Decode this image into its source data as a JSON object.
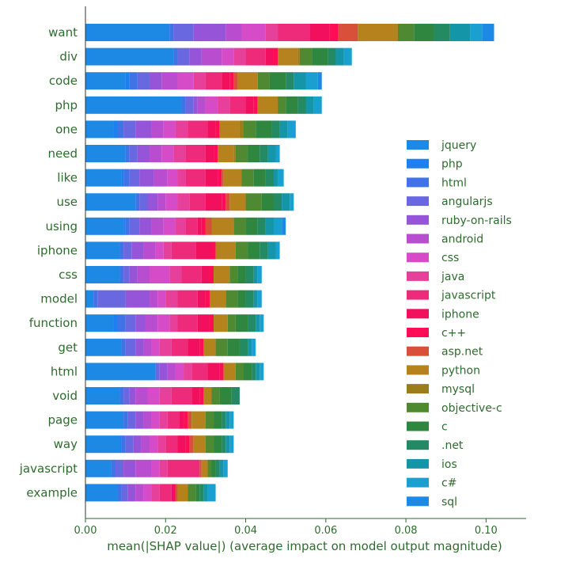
{
  "chart_data": {
    "type": "bar",
    "orientation": "horizontal",
    "stacked": true,
    "xlabel": "mean(|SHAP value|) (average impact on model output magnitude)",
    "xlim": [
      0,
      0.11
    ],
    "xticks": [
      0.0,
      0.02,
      0.04,
      0.06,
      0.08,
      0.1
    ],
    "xtick_labels": [
      "0.00",
      "0.02",
      "0.04",
      "0.06",
      "0.08",
      "0.10"
    ],
    "legend_position": "right",
    "categories": [
      "want",
      "div",
      "code",
      "php",
      "one",
      "need",
      "like",
      "use",
      "using",
      "iphone",
      "css",
      "model",
      "function",
      "get",
      "html",
      "void",
      "page",
      "way",
      "javascript",
      "example"
    ],
    "series": [
      {
        "name": "jquery",
        "color": "#1e88e5",
        "values": [
          0.021,
          0.022,
          0.01,
          0.024,
          0.007,
          0.01,
          0.009,
          0.0125,
          0.0095,
          0.0085,
          0.0085,
          0.002,
          0.007,
          0.009,
          0.0175,
          0.0085,
          0.0095,
          0.0085,
          0.0065,
          0.008
        ]
      },
      {
        "name": "php",
        "color": "#1e7ff0",
        "values": [
          0.0,
          0.0,
          0.001,
          0.0,
          0.001,
          0.0,
          0.0005,
          0.0,
          0.0005,
          0.0,
          0.0,
          0.0,
          0.001,
          0.0,
          0.0,
          0.0,
          0.0,
          0.0005,
          0.0,
          0.0
        ]
      },
      {
        "name": "html",
        "color": "#3f73e6",
        "values": [
          0.001,
          0.001,
          0.002,
          0.001,
          0.0015,
          0.001,
          0.0015,
          0.001,
          0.001,
          0.001,
          0.001,
          0.001,
          0.002,
          0.001,
          0.0,
          0.001,
          0.001,
          0.001,
          0.001,
          0.001
        ]
      },
      {
        "name": "angularjs",
        "color": "#6a68e0",
        "values": [
          0.005,
          0.003,
          0.003,
          0.002,
          0.003,
          0.002,
          0.0025,
          0.002,
          0.0025,
          0.002,
          0.0015,
          0.007,
          0.0025,
          0.0025,
          0.001,
          0.0015,
          0.002,
          0.002,
          0.002,
          0.0015
        ]
      },
      {
        "name": "ruby-on-rails",
        "color": "#9654d8",
        "values": [
          0.008,
          0.003,
          0.003,
          0.001,
          0.004,
          0.003,
          0.0035,
          0.0025,
          0.003,
          0.003,
          0.002,
          0.006,
          0.0025,
          0.002,
          0.002,
          0.0015,
          0.002,
          0.002,
          0.003,
          0.002
        ]
      },
      {
        "name": "android",
        "color": "#b84dcf",
        "values": [
          0.004,
          0.005,
          0.004,
          0.002,
          0.003,
          0.003,
          0.0035,
          0.002,
          0.003,
          0.003,
          0.003,
          0.002,
          0.003,
          0.002,
          0.002,
          0.003,
          0.002,
          0.002,
          0.004,
          0.002
        ]
      },
      {
        "name": "css",
        "color": "#d64bc7",
        "values": [
          0.006,
          0.003,
          0.004,
          0.003,
          0.003,
          0.003,
          0.0025,
          0.003,
          0.003,
          0.002,
          0.005,
          0.002,
          0.003,
          0.002,
          0.002,
          0.003,
          0.002,
          0.002,
          0.002,
          0.002
        ]
      },
      {
        "name": "java",
        "color": "#e6409a",
        "values": [
          0.003,
          0.003,
          0.003,
          0.003,
          0.003,
          0.003,
          0.002,
          0.003,
          0.0025,
          0.002,
          0.003,
          0.003,
          0.002,
          0.003,
          0.002,
          0.003,
          0.002,
          0.002,
          0.002,
          0.002
        ]
      },
      {
        "name": "javascript",
        "color": "#ee2a7b",
        "values": [
          0.008,
          0.005,
          0.004,
          0.004,
          0.005,
          0.005,
          0.005,
          0.004,
          0.003,
          0.006,
          0.005,
          0.005,
          0.005,
          0.004,
          0.004,
          0.005,
          0.003,
          0.003,
          0.008,
          0.003
        ]
      },
      {
        "name": "iphone",
        "color": "#f2105e",
        "values": [
          0.005,
          0.002,
          0.002,
          0.002,
          0.002,
          0.002,
          0.003,
          0.004,
          0.001,
          0.004,
          0.002,
          0.002,
          0.003,
          0.003,
          0.003,
          0.002,
          0.001,
          0.002,
          0.0,
          0.001
        ]
      },
      {
        "name": "c++",
        "color": "#ff0d57",
        "values": [
          0.002,
          0.001,
          0.001,
          0.001,
          0.001,
          0.001,
          0.001,
          0.001,
          0.001,
          0.001,
          0.001,
          0.001,
          0.001,
          0.001,
          0.001,
          0.001,
          0.001,
          0.001,
          0.0,
          0.0
        ]
      },
      {
        "name": "asp.net",
        "color": "#d84f3a",
        "values": [
          0.005,
          0.0,
          0.001,
          0.0,
          0.0,
          0.0,
          0.0005,
          0.001,
          0.0015,
          0.0,
          0.0,
          0.0,
          0.0,
          0.0,
          0.0,
          0.0,
          0.001,
          0.001,
          0.0005,
          0.0005
        ]
      },
      {
        "name": "python",
        "color": "#b5821d",
        "values": [
          0.01,
          0.005,
          0.005,
          0.005,
          0.005,
          0.004,
          0.0045,
          0.004,
          0.0055,
          0.005,
          0.004,
          0.004,
          0.0035,
          0.003,
          0.003,
          0.002,
          0.0035,
          0.003,
          0.0015,
          0.0025
        ]
      },
      {
        "name": "mysql",
        "color": "#9c7d1c",
        "values": [
          0.0,
          0.0005,
          0.0,
          0.0,
          0.001,
          0.0005,
          0.0,
          0.0,
          0.0,
          0.0,
          0.0,
          0.0,
          0.0,
          0.0,
          0.0,
          0.0,
          0.0,
          0.0,
          0.0,
          0.0
        ]
      },
      {
        "name": "objective-c",
        "color": "#4f8a32",
        "values": [
          0.004,
          0.003,
          0.003,
          0.002,
          0.003,
          0.003,
          0.003,
          0.004,
          0.003,
          0.003,
          0.002,
          0.003,
          0.002,
          0.003,
          0.002,
          0.002,
          0.002,
          0.002,
          0.001,
          0.002
        ]
      },
      {
        "name": "c",
        "color": "#2f873f",
        "values": [
          0.005,
          0.004,
          0.004,
          0.003,
          0.004,
          0.003,
          0.003,
          0.003,
          0.003,
          0.003,
          0.002,
          0.002,
          0.003,
          0.003,
          0.002,
          0.003,
          0.002,
          0.002,
          0.001,
          0.001
        ]
      },
      {
        "name": ".net",
        "color": "#238a63",
        "values": [
          0.004,
          0.002,
          0.002,
          0.002,
          0.002,
          0.002,
          0.002,
          0.002,
          0.002,
          0.002,
          0.002,
          0.002,
          0.002,
          0.002,
          0.001,
          0.002,
          0.001,
          0.001,
          0.001,
          0.001
        ]
      },
      {
        "name": "ios",
        "color": "#1596a8",
        "values": [
          0.005,
          0.002,
          0.003,
          0.002,
          0.002,
          0.002,
          0.001,
          0.002,
          0.002,
          0.002,
          0.001,
          0.001,
          0.001,
          0.001,
          0.001,
          0.0,
          0.001,
          0.001,
          0.001,
          0.001
        ]
      },
      {
        "name": "c#",
        "color": "#1aa0d0",
        "values": [
          0.003,
          0.002,
          0.003,
          0.002,
          0.002,
          0.001,
          0.0015,
          0.001,
          0.002,
          0.001,
          0.001,
          0.001,
          0.001,
          0.001,
          0.001,
          0.0,
          0.001,
          0.001,
          0.001,
          0.002
        ]
      },
      {
        "name": "sql",
        "color": "#1e88e5",
        "values": [
          0.003,
          0.0,
          0.001,
          0.0,
          0.0,
          0.0,
          0.0,
          0.0,
          0.001,
          0.0,
          0.0,
          0.0,
          0.0,
          0.0,
          0.0,
          0.0,
          0.0,
          0.0,
          0.0,
          0.0
        ]
      }
    ]
  }
}
